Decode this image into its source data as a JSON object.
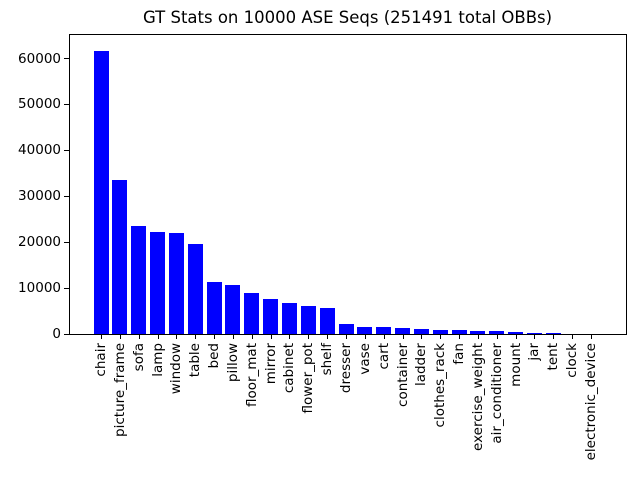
{
  "window": {
    "background": "#ffffff"
  },
  "chart_data": {
    "type": "bar",
    "title": "GT Stats on 10000 ASE Seqs (251491 total OBBs)",
    "total_obbs": 251491,
    "bar_color": "#0000ff",
    "axis_color": "#000000",
    "text_color": "#000000",
    "xlabel": "",
    "ylabel": "",
    "grid": false,
    "legend": "none",
    "x_label_rotation_deg": 90,
    "yticks": [
      0,
      10000,
      20000,
      30000,
      40000,
      50000,
      60000
    ],
    "ylim": [
      0,
      65350
    ],
    "categories": [
      "chair",
      "picture_frame",
      "sofa",
      "lamp",
      "window",
      "table",
      "bed",
      "pillow",
      "floor_mat",
      "mirror",
      "cabinet",
      "flower_pot",
      "shelf",
      "dresser",
      "vase",
      "cart",
      "container",
      "ladder",
      "clothes_rack",
      "fan",
      "exercise_weight",
      "air_conditioner",
      "mount",
      "jar",
      "tent",
      "clock",
      "electronic_device"
    ],
    "values": [
      61700,
      33450,
      23600,
      22250,
      21900,
      19500,
      11400,
      10750,
      9020,
      7650,
      6850,
      6150,
      5750,
      2200,
      1600,
      1570,
      1290,
      990,
      790,
      780,
      700,
      600,
      450,
      270,
      150,
      95,
      36
    ]
  }
}
